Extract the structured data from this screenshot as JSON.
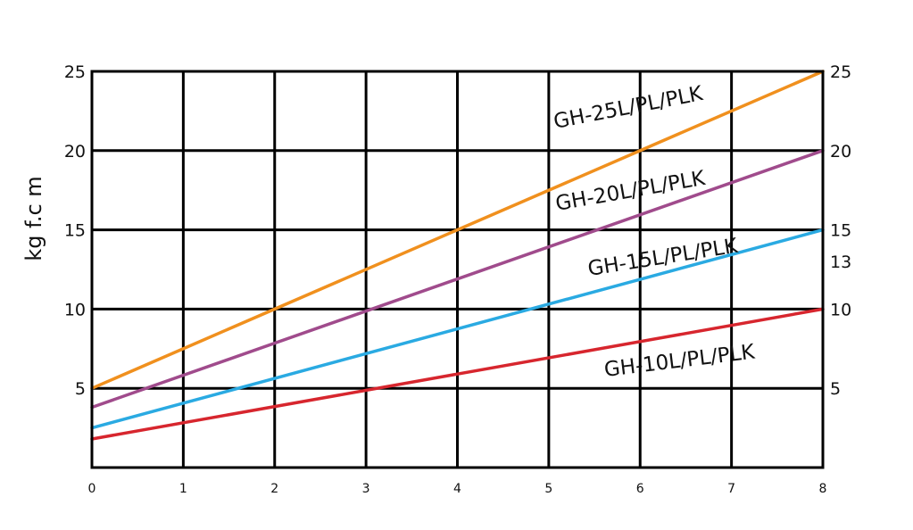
{
  "chart_data": {
    "type": "line",
    "title": "",
    "xlabel": "",
    "ylabel": "kg f.c m",
    "xlim": [
      0,
      8
    ],
    "ylim": [
      0,
      25
    ],
    "grid": true,
    "x_ticks": [
      "0",
      "1",
      "2",
      "3",
      "4",
      "5",
      "6",
      "7",
      "8"
    ],
    "y_ticks_left": [
      {
        "value": 5,
        "label": "5"
      },
      {
        "value": 10,
        "label": "10"
      },
      {
        "value": 15,
        "label": "15"
      },
      {
        "value": 20,
        "label": "20"
      },
      {
        "value": 25,
        "label": "25"
      }
    ],
    "y_ticks_right": [
      {
        "value": 5,
        "label": "5"
      },
      {
        "value": 10,
        "label": "10"
      },
      {
        "value": 13,
        "label": "13"
      },
      {
        "value": 15,
        "label": "15"
      },
      {
        "value": 20,
        "label": "20"
      },
      {
        "value": 25,
        "label": "25"
      }
    ],
    "series": [
      {
        "name": "GH-25L/PL/PLK",
        "color": "#F0901E",
        "x": [
          0,
          8
        ],
        "y": [
          5,
          25
        ]
      },
      {
        "name": "GH-20L/PL/PLK",
        "color": "#A04B8C",
        "x": [
          0,
          8
        ],
        "y": [
          3.8,
          20
        ]
      },
      {
        "name": "GH-15L/PL/PLK",
        "color": "#2AAAE2",
        "x": [
          0,
          8
        ],
        "y": [
          2.5,
          15
        ]
      },
      {
        "name": "GH-10L/PL/PLK",
        "color": "#D7262E",
        "x": [
          0,
          8
        ],
        "y": [
          1.8,
          10
        ]
      }
    ]
  }
}
